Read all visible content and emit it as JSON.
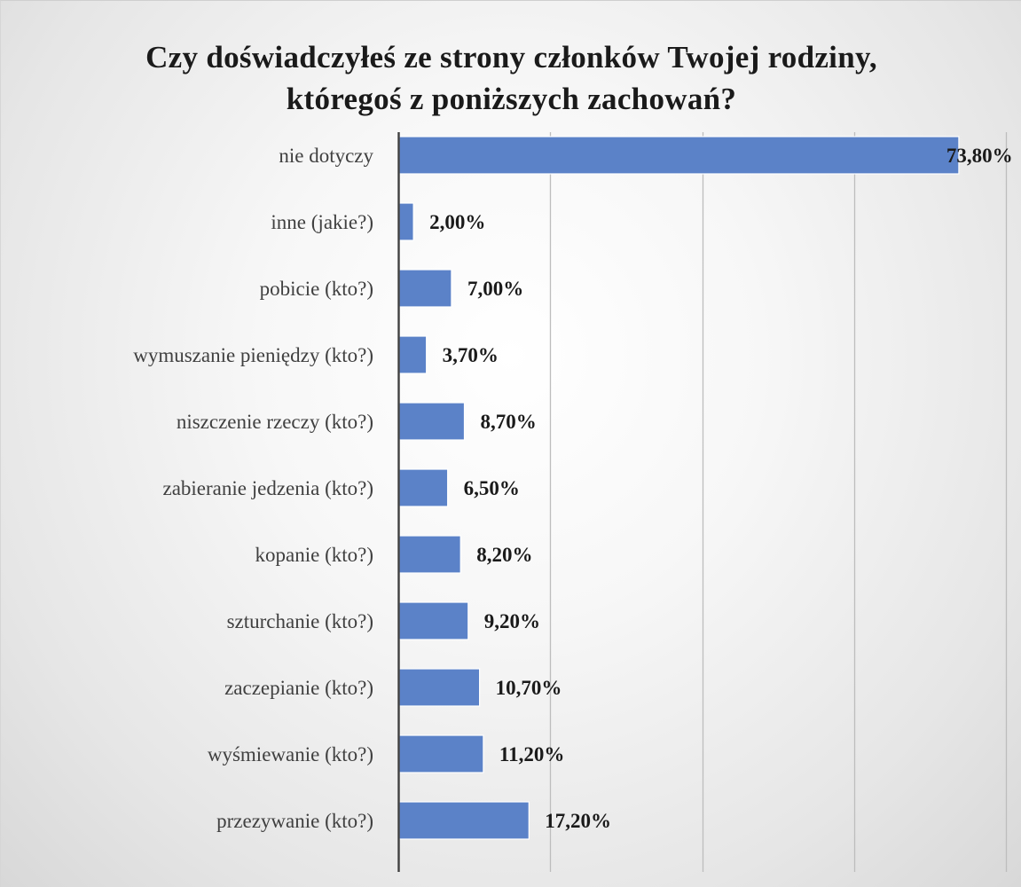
{
  "chart_data": {
    "type": "bar",
    "orientation": "horizontal",
    "title_lines": [
      "Czy doświadczyłeś ze strony członków Twojej rodziny,",
      "któregoś z poniższych zachowań?"
    ],
    "categories": [
      "nie dotyczy",
      "inne (jakie?)",
      "pobicie (kto?)",
      "wymuszanie pieniędzy (kto?)",
      "niszczenie rzeczy (kto?)",
      "zabieranie jedzenia (kto?)",
      "kopanie (kto?)",
      "szturchanie (kto?)",
      "zaczepianie (kto?)",
      "wyśmiewanie (kto?)",
      "przezywanie (kto?)"
    ],
    "values": [
      73.8,
      2.0,
      7.0,
      3.7,
      8.7,
      6.5,
      8.2,
      9.2,
      10.7,
      11.2,
      17.2
    ],
    "value_labels": [
      "73,80%",
      "2,00%",
      "7,00%",
      "3,70%",
      "8,70%",
      "6,50%",
      "8,20%",
      "9,20%",
      "10,70%",
      "11,20%",
      "17,20%"
    ],
    "xlim": [
      0,
      80
    ],
    "x_gridlines": [
      0,
      20,
      40,
      60,
      80
    ],
    "x_tick_labels_visible": false,
    "grid": true,
    "legend": "none",
    "colors": {
      "bar_fill": "#5b82c8",
      "bar_stroke": "#ffffff",
      "axis": "#404040",
      "gridline": "#bdbdbd"
    }
  }
}
